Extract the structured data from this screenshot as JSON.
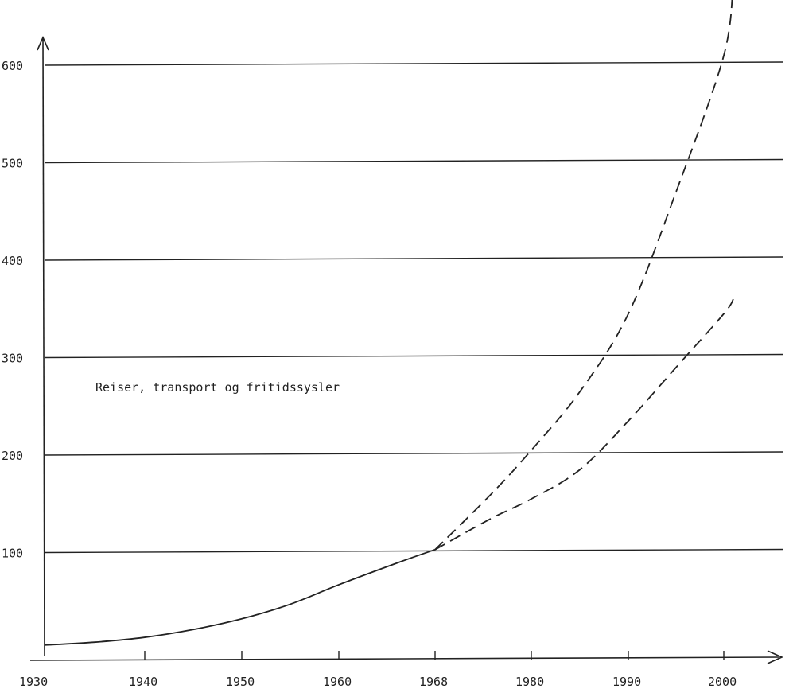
{
  "chart_data": {
    "type": "line",
    "annotation": "Reiser, transport og fritidssysler",
    "x_ticks": [
      "1930",
      "1940",
      "1950",
      "1960",
      "1968",
      "1980",
      "1990",
      "2000"
    ],
    "y_ticks": [
      "100",
      "200",
      "300",
      "400",
      "500",
      "600"
    ],
    "xlim": [
      1930,
      2006
    ],
    "ylim": [
      0,
      650
    ],
    "grid": "horizontal",
    "series": [
      {
        "style": "solid",
        "x": [
          1930,
          1935,
          1940,
          1945,
          1950,
          1955,
          1960,
          1965,
          1968
        ],
        "y": [
          5,
          8,
          13,
          21,
          32,
          47,
          67,
          90,
          103
        ]
      },
      {
        "style": "dashed",
        "x": [
          1968,
          1975,
          1980,
          1985,
          1990,
          1995,
          2000,
          2001
        ],
        "y": [
          103,
          160,
          205,
          265,
          345,
          470,
          610,
          690
        ]
      },
      {
        "style": "dashed",
        "x": [
          1968,
          1975,
          1980,
          1985,
          1990,
          1995,
          2000,
          2001
        ],
        "y": [
          103,
          135,
          155,
          185,
          235,
          290,
          345,
          360
        ]
      }
    ]
  }
}
